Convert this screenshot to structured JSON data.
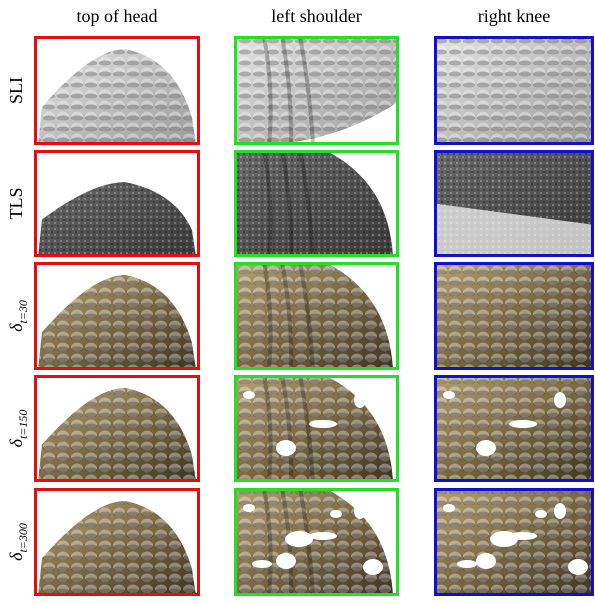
{
  "columns": [
    "top of head",
    "left shoulder",
    "right knee"
  ],
  "rows": [
    "SLI",
    "TLS",
    {
      "symbol": "δ",
      "subscript": "t=30"
    },
    {
      "symbol": "δ",
      "subscript": "t=150"
    },
    {
      "symbol": "δ",
      "subscript": "t=300"
    }
  ]
}
